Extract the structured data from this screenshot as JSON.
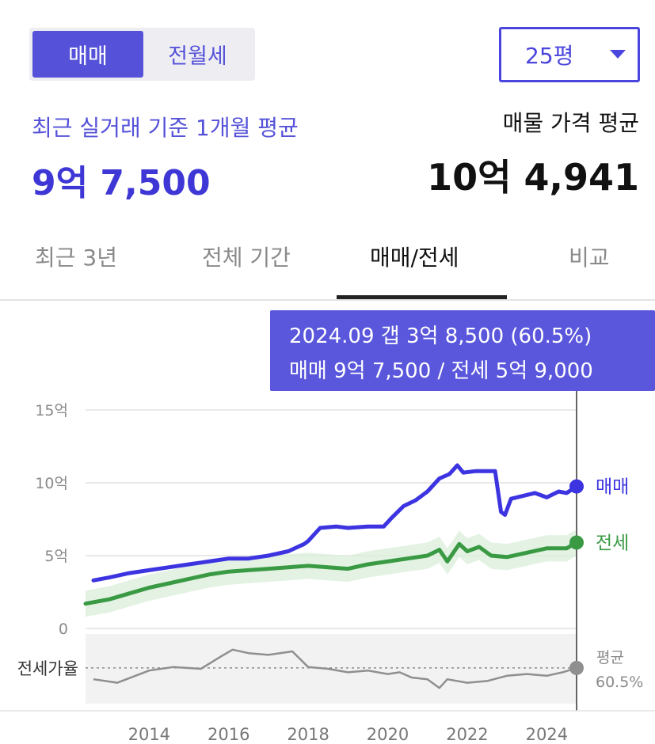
{
  "header": {
    "toggle": {
      "sale_label": "매매",
      "rent_label": "전월세"
    },
    "size_select": {
      "value": "25평"
    }
  },
  "summary": {
    "recent_label": "최근 실거래 기준 1개월 평균",
    "recent_value": "9억 7,500",
    "listing_label": "매물 가격 평균",
    "listing_value": "10억 4,941"
  },
  "tabs": [
    "최근 3년",
    "전체 기간",
    "매매/전세",
    "비교"
  ],
  "tooltip": {
    "line1": "2024.09  갭 3억 8,500 (60.5%)",
    "line2": "매매 9억 7,500 / 전세 5억 9,000"
  },
  "colors": {
    "accent": "#4a45dc",
    "sale": "#3c34e0",
    "jeonse": "#3a9a44",
    "ratio": "#8f8f8f"
  },
  "chart_data": {
    "type": "line",
    "x_unit": "year",
    "y_unit": "억",
    "ylim": [
      0,
      15
    ],
    "xlim": [
      2012.4,
      2024.75
    ],
    "ytick_labels": [
      "15억",
      "10억",
      "5억",
      "0"
    ],
    "ytick_values": [
      15,
      10,
      5,
      0
    ],
    "xtick_labels": [
      "2014",
      "2016",
      "2018",
      "2020",
      "2022",
      "2024"
    ],
    "xtick_values": [
      2014,
      2016,
      2018,
      2020,
      2022,
      2024
    ],
    "series": [
      {
        "name": "매매",
        "color": "#3c34e0",
        "x": [
          2012.6,
          2013.0,
          2013.5,
          2014.0,
          2014.5,
          2015.0,
          2015.5,
          2016.0,
          2016.5,
          2017.0,
          2017.5,
          2017.9,
          2018.0,
          2018.3,
          2018.7,
          2019.0,
          2019.5,
          2019.9,
          2020.1,
          2020.4,
          2020.7,
          2021.0,
          2021.3,
          2021.55,
          2021.75,
          2021.9,
          2022.2,
          2022.7,
          2022.85,
          2022.95,
          2023.1,
          2023.4,
          2023.7,
          2024.0,
          2024.3,
          2024.5,
          2024.75
        ],
        "values": [
          3.3,
          3.5,
          3.8,
          4.0,
          4.2,
          4.4,
          4.6,
          4.8,
          4.8,
          5.0,
          5.3,
          5.8,
          6.0,
          6.9,
          7.0,
          6.9,
          7.0,
          7.0,
          7.6,
          8.4,
          8.8,
          9.4,
          10.3,
          10.6,
          11.2,
          10.7,
          10.8,
          10.8,
          8.0,
          7.8,
          8.9,
          9.1,
          9.3,
          9.0,
          9.4,
          9.3,
          9.75
        ]
      },
      {
        "name": "전세",
        "color": "#3a9a44",
        "x": [
          2012.4,
          2013.0,
          2013.5,
          2014.0,
          2014.5,
          2015.0,
          2015.5,
          2016.0,
          2016.5,
          2017.0,
          2017.5,
          2018.0,
          2018.5,
          2019.0,
          2019.5,
          2020.0,
          2020.5,
          2021.0,
          2021.3,
          2021.5,
          2021.8,
          2022.0,
          2022.3,
          2022.6,
          2023.0,
          2023.5,
          2024.0,
          2024.5,
          2024.75
        ],
        "values": [
          1.7,
          2.0,
          2.4,
          2.8,
          3.1,
          3.4,
          3.7,
          3.9,
          4.0,
          4.1,
          4.2,
          4.3,
          4.2,
          4.1,
          4.4,
          4.6,
          4.8,
          5.0,
          5.4,
          4.6,
          5.8,
          5.3,
          5.6,
          5.0,
          4.9,
          5.2,
          5.5,
          5.5,
          5.9
        ]
      }
    ],
    "end_labels": [
      "매매",
      "전세"
    ],
    "ratio_panel": {
      "label": "전세가율",
      "average_label": "평균",
      "average_value": "60.5%",
      "average": 60.5,
      "ylim": [
        40,
        80
      ],
      "x": [
        2012.6,
        2013.2,
        2014.0,
        2014.6,
        2015.3,
        2015.8,
        2016.1,
        2016.5,
        2017.0,
        2017.6,
        2018.0,
        2018.5,
        2019.0,
        2019.5,
        2020.0,
        2020.3,
        2020.6,
        2021.0,
        2021.3,
        2021.5,
        2022.0,
        2022.5,
        2023.0,
        2023.5,
        2024.0,
        2024.4,
        2024.75
      ],
      "values": [
        54,
        52,
        59,
        61,
        60,
        67,
        71,
        69,
        68,
        70,
        61,
        60,
        58,
        59,
        57,
        58,
        55,
        54,
        49,
        54,
        52,
        53,
        56,
        57,
        56,
        58,
        60.5
      ]
    }
  }
}
